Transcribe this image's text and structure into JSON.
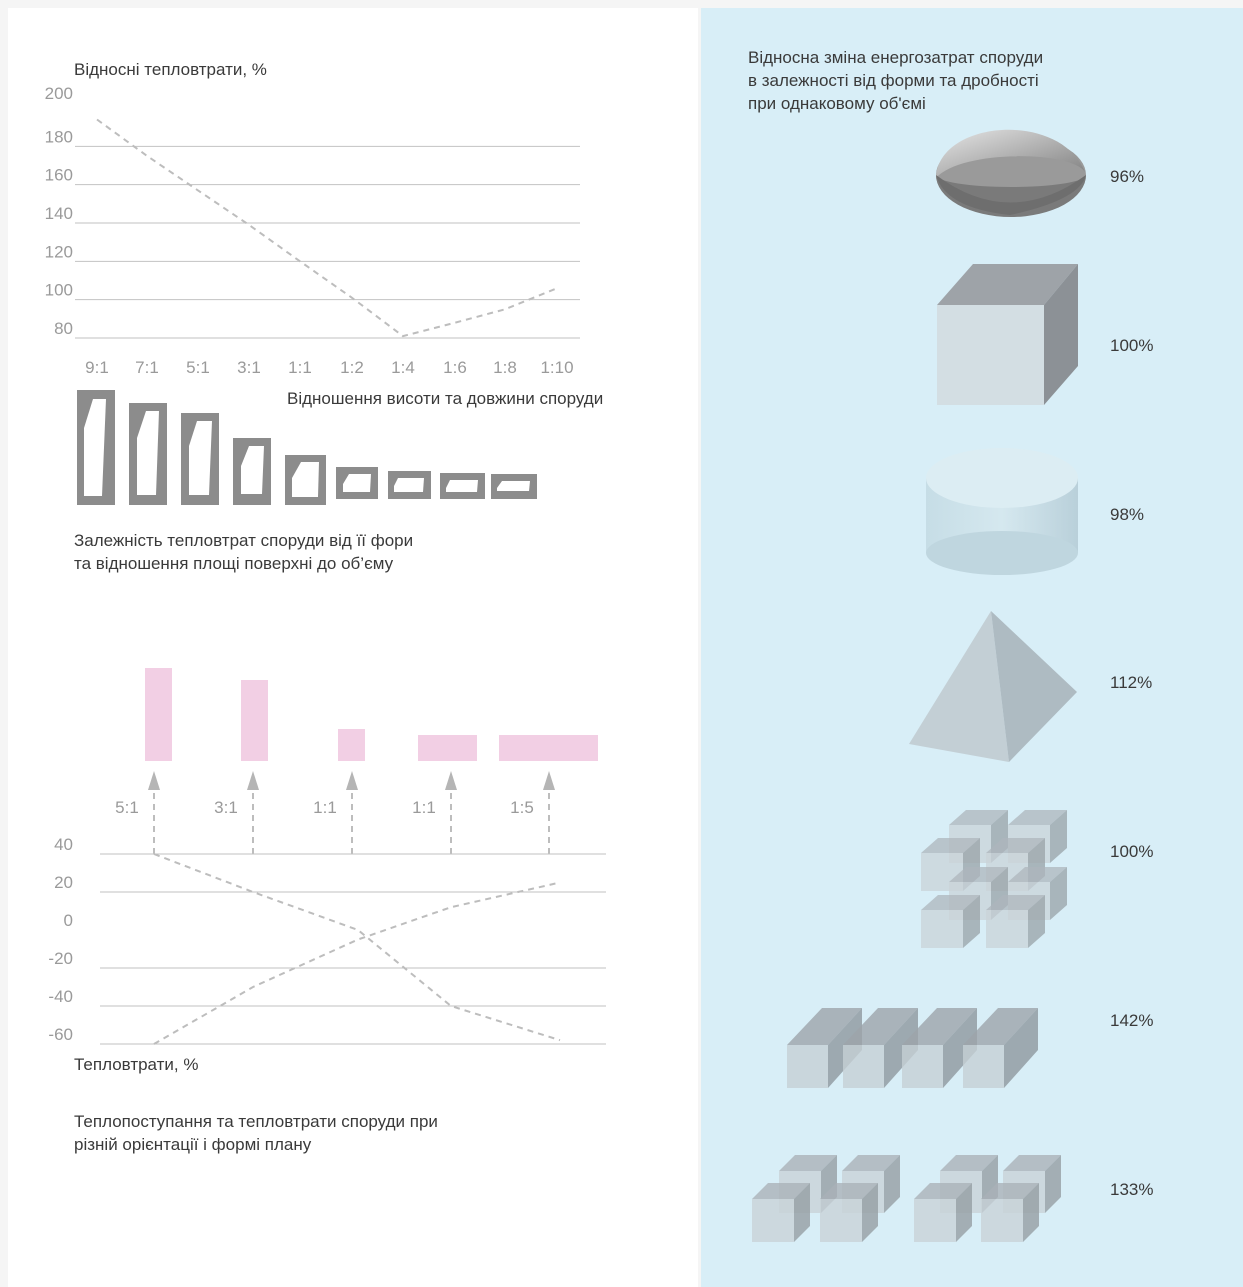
{
  "chart_data": [
    {
      "type": "line",
      "ylabel": "Відносні тепловтрати, %",
      "xlabel": "Відношення висоти та довжини споруди",
      "caption": [
        "Залежність тепловтрат споруди від її фори",
        "та відношення площі поверхні до об’єму"
      ],
      "yticks": [
        200,
        180,
        160,
        140,
        120,
        100,
        80
      ],
      "ylim": [
        80,
        200
      ],
      "categories": [
        "9:1",
        "7:1",
        "5:1",
        "3:1",
        "1:1",
        "1:2",
        "1:4",
        "1:6",
        "1:8",
        "1:10"
      ],
      "series": [
        {
          "values": [
            194,
            175,
            157,
            139,
            120,
            101,
            81,
            88,
            95,
            106
          ]
        }
      ],
      "grid": true
    },
    {
      "type": "line",
      "ylabel": "Тепловтрати, %",
      "caption": [
        "Теплопоступання та тепловтрати споруди при",
        "різній орієнтації і формі плану"
      ],
      "yticks": [
        40,
        20,
        0,
        -20,
        -40,
        -60
      ],
      "ylim": [
        -60,
        40
      ],
      "categories": [
        "5:1",
        "3:1",
        "1:1",
        "1:1",
        "1:5"
      ],
      "series": [
        {
          "values": [
            40,
            20,
            0,
            -40,
            -58
          ]
        },
        {
          "values": [
            -60,
            -30,
            -5,
            12,
            25
          ]
        }
      ],
      "grid": true
    },
    {
      "type": "bar",
      "title": [
        "Відносна зміна енергозатрат споруди",
        "в залежності від форми та дробності",
        "при однаковому об'ємі"
      ],
      "categories": [
        "hemisphere",
        "cube",
        "cylinder",
        "pyramid",
        "cube-cluster",
        "cube-row",
        "cube-pairs"
      ],
      "values": [
        96,
        100,
        98,
        112,
        100,
        142,
        133
      ],
      "labels": [
        "96%",
        "100%",
        "98%",
        "112%",
        "100%",
        "142%",
        "133%"
      ]
    }
  ],
  "colors": {
    "background": "#ffffff",
    "right_panel": "#d8eef7",
    "grid": "#c2c2c2",
    "dashed_line": "#bdbdbd",
    "shape_gray": "#8c8c8c",
    "pink_bars": "#f2cfe4",
    "text": "#3a3a3a",
    "tick_text": "#9a9a9a"
  }
}
